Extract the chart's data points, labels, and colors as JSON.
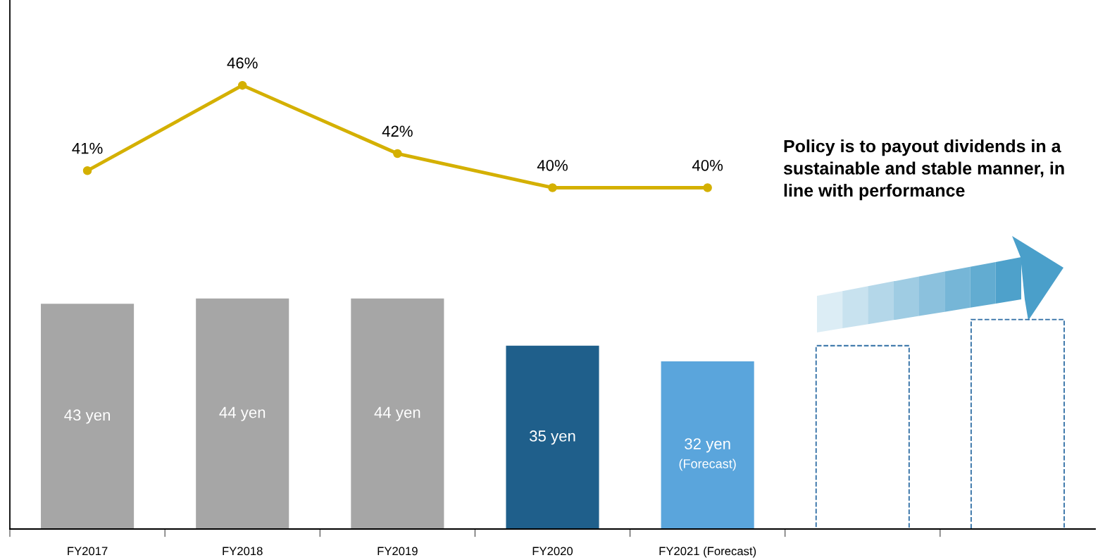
{
  "chart_data": {
    "type": "bar",
    "categories": [
      "FY2017",
      "FY2018",
      "FY2019",
      "FY2020",
      "FY2021 (Forecast)",
      null,
      null
    ],
    "series": [
      {
        "values": [
          43,
          44,
          44,
          35,
          32,
          null,
          null
        ],
        "colors": [
          "#a6a6a6",
          "#a6a6a6",
          "#a6a6a6",
          "#1f5f8b",
          "#5aa5dc",
          null,
          null
        ],
        "value_labels": [
          "43 yen",
          "44 yen",
          "44 yen",
          "35 yen",
          "32 yen\n(Forecast)",
          null,
          null
        ]
      },
      {
        "values": [
          null,
          null,
          null,
          null,
          null,
          35,
          40
        ],
        "color": "#2e6da4",
        "line_style": "dashed"
      },
      {
        "type": "line",
        "axis": "y2",
        "values": [
          41,
          46,
          42,
          40,
          40,
          null,
          null
        ],
        "color": "#d4b000",
        "marker": "circle",
        "value_labels": [
          "41%",
          "46%",
          "42%",
          "40%",
          "40%",
          null,
          null
        ]
      }
    ],
    "ylim": [
      0,
      101
    ],
    "y2lim": [
      20,
      51
    ],
    "tick_labels": "x",
    "grid": false,
    "annotations": [
      "Policy is to payout dividends in a sustainable and stable manner, in line with performance"
    ]
  }
}
